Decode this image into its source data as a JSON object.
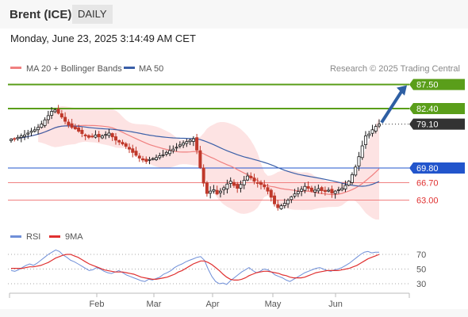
{
  "header": {
    "instrument": "Brent (ICE)",
    "period": "DAILY",
    "timestamp": "Monday, June 23, 2025 3:14:49 AM CET"
  },
  "legend": {
    "ma20": "MA 20 + Bollinger Bands",
    "ma50": "MA 50",
    "credit": "Research © 2025 Trading Central",
    "rsi": "RSI",
    "rsi9": "9MA"
  },
  "colors": {
    "candle_up": "#1a1a1a",
    "candle_down": "#c0392b",
    "bollinger_fill": "#fde0e0",
    "ma20": "#f08080",
    "ma50": "#3a5fa8",
    "resistance": "#5a9e1a",
    "support": "#2255cc",
    "support_minor": "#f08080",
    "current": "#333333",
    "arrow": "#2e5fa3",
    "rsi": "#6f8fd8",
    "rsi_ma": "#e03030"
  },
  "chart_data": [
    {
      "type": "candlestick",
      "title": "Brent (ICE)",
      "period": "DAILY",
      "x_ticks": [
        "Feb",
        "Mar",
        "Apr",
        "May",
        "Jun"
      ],
      "ylim": [
        58.0,
        89.0
      ],
      "levels": [
        {
          "label": "87.50",
          "value": 87.5,
          "kind": "resistance",
          "style": "solid"
        },
        {
          "label": "82.40",
          "value": 82.4,
          "kind": "resistance",
          "style": "solid"
        },
        {
          "label": "79.10",
          "value": 79.1,
          "kind": "current",
          "style": "dotted"
        },
        {
          "label": "69.80",
          "value": 69.8,
          "kind": "support",
          "style": "solid"
        },
        {
          "label": "66.70",
          "value": 66.7,
          "kind": "support_minor",
          "style": "solid"
        },
        {
          "label": "63.00",
          "value": 63.0,
          "kind": "support_minor",
          "style": "solid"
        }
      ],
      "forecast_arrow": {
        "from": 79.1,
        "to": 87.5
      },
      "series_close": [
        75.9,
        76.0,
        76.3,
        76.6,
        76.8,
        77.2,
        77.6,
        77.9,
        78.4,
        79.1,
        80.0,
        80.9,
        81.8,
        82.1,
        81.4,
        80.6,
        79.7,
        78.9,
        78.4,
        78.1,
        77.6,
        77.1,
        76.6,
        76.3,
        76.5,
        76.8,
        76.4,
        76.6,
        76.9,
        77.2,
        76.4,
        75.7,
        75.3,
        74.9,
        74.4,
        73.8,
        73.1,
        72.5,
        71.9,
        71.5,
        71.2,
        71.6,
        71.8,
        72.0,
        72.4,
        72.6,
        73.1,
        73.5,
        73.8,
        74.2,
        74.7,
        75.1,
        75.4,
        75.7,
        76.0,
        73.6,
        69.9,
        66.6,
        64.4,
        64.9,
        65.2,
        64.3,
        64.9,
        65.6,
        66.4,
        67.0,
        66.1,
        65.5,
        66.3,
        67.2,
        68.1,
        67.7,
        67.0,
        66.6,
        66.3,
        65.8,
        64.9,
        63.6,
        62.2,
        61.4,
        61.8,
        62.3,
        63.0,
        63.7,
        64.3,
        64.8,
        65.3,
        65.9,
        65.5,
        64.9,
        65.1,
        65.4,
        65.0,
        64.8,
        65.1,
        64.5,
        64.9,
        65.2,
        65.5,
        66.1,
        67.0,
        68.4,
        70.0,
        72.2,
        74.5,
        76.6,
        77.0,
        77.9,
        78.6,
        79.1
      ]
    },
    {
      "type": "line",
      "title": "RSI",
      "yticks": [
        30,
        50,
        70
      ],
      "ylim": [
        20,
        80
      ],
      "series": [
        {
          "name": "RSI",
          "values": [
            48,
            47,
            49,
            52,
            55,
            57,
            55,
            58,
            62,
            66,
            70,
            73,
            76,
            74,
            69,
            66,
            62,
            60,
            57,
            54,
            51,
            48,
            49,
            52,
            50,
            47,
            45,
            44,
            46,
            48,
            45,
            42,
            40,
            38,
            36,
            34,
            33,
            36,
            35,
            37,
            39,
            43,
            45,
            48,
            52,
            55,
            57,
            60,
            62,
            64,
            66,
            67,
            62,
            50,
            40,
            33,
            30,
            31,
            29,
            34,
            38,
            42,
            46,
            49,
            52,
            48,
            45,
            47,
            50,
            49,
            46,
            42,
            40,
            38,
            35,
            33,
            36,
            39,
            42,
            45,
            47,
            49,
            51,
            52,
            50,
            48,
            47,
            49,
            50,
            52,
            55,
            58,
            62,
            66,
            70,
            73,
            74,
            72,
            73,
            73
          ]
        },
        {
          "name": "9MA",
          "values": [
            51,
            51,
            51,
            51,
            52,
            53,
            53,
            54,
            55,
            57,
            59,
            62,
            65,
            67,
            69,
            70,
            70,
            68,
            66,
            63,
            60,
            57,
            55,
            53,
            51,
            49,
            48,
            47,
            46,
            46,
            46,
            45,
            44,
            43,
            41,
            39,
            38,
            37,
            36,
            36,
            37,
            38,
            39,
            41,
            43,
            46,
            48,
            51,
            54,
            57,
            59,
            61,
            61,
            59,
            56,
            52,
            48,
            43,
            39,
            36,
            35,
            35,
            36,
            38,
            41,
            43,
            45,
            46,
            47,
            47,
            46,
            45,
            44,
            42,
            41,
            39,
            38,
            38,
            38,
            39,
            41,
            43,
            45,
            46,
            47,
            48,
            48,
            48,
            48,
            49,
            50,
            51,
            53,
            55,
            58,
            61,
            64,
            66,
            68,
            70
          ]
        }
      ]
    }
  ]
}
